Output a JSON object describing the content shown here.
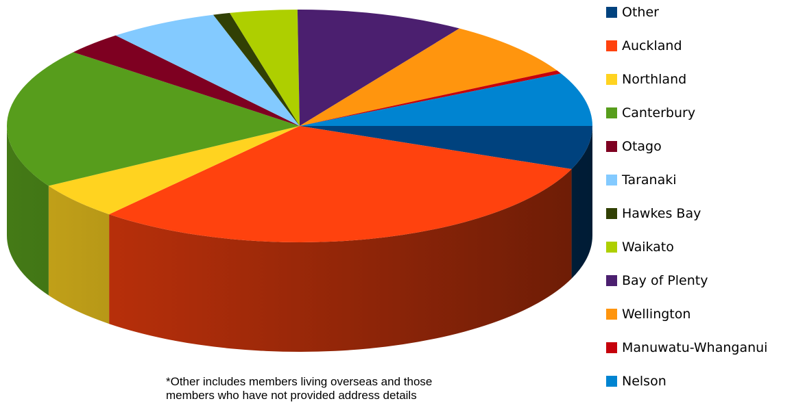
{
  "chart_data": {
    "type": "pie",
    "three_d": true,
    "title": "",
    "legend_position": "right",
    "start_at": "3 o'clock, clockwise",
    "slices": [
      {
        "label": "Other",
        "value": 6.5,
        "color": "#00427E"
      },
      {
        "label": "Auckland",
        "value": 32.5,
        "color": "#FF420E"
      },
      {
        "label": "Northland",
        "value": 5.5,
        "color": "#FFD320"
      },
      {
        "label": "Canterbury",
        "value": 21.0,
        "color": "#579D1C"
      },
      {
        "label": "Otago",
        "value": 3.5,
        "color": "#7E0021"
      },
      {
        "label": "Taranaki",
        "value": 6.5,
        "color": "#83CAFF"
      },
      {
        "label": "Hawkes Bay",
        "value": 1.0,
        "color": "#314004"
      },
      {
        "label": "Waikato",
        "value": 4.0,
        "color": "#AECF00"
      },
      {
        "label": "Bay of Plenty",
        "value": 10.0,
        "color": "#4B1F6F"
      },
      {
        "label": "Wellington",
        "value": 8.5,
        "color": "#FF950E"
      },
      {
        "label": "Manuwatu-Whanganui",
        "value": 0.5,
        "color": "#C5000B"
      },
      {
        "label": "Nelson",
        "value": 8.0,
        "color": "#0084D1"
      }
    ]
  },
  "footnote": {
    "line1": "*Other includes members living overseas and those",
    "line2": "members who have not provided address details"
  }
}
